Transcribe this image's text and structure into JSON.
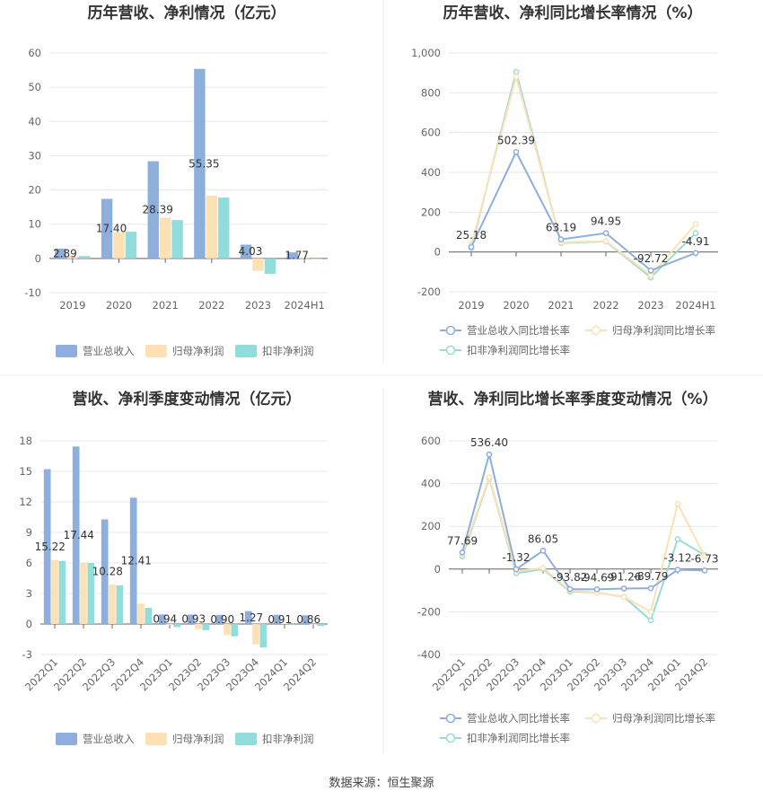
{
  "colors": {
    "revenue": "#8eaedb",
    "net_profit": "#fde1b4",
    "deducted_profit": "#92dcdc",
    "revenue_line": "#8eaedb",
    "net_line": "#fde1b4",
    "deducted_line": "#9adad8",
    "grid": "#e6e6ef",
    "axis": "#666666"
  },
  "source": "数据来源：恒生聚源",
  "chart_data": [
    {
      "type": "bar",
      "title": "历年营收、净利情况（亿元）",
      "categories": [
        "2019",
        "2020",
        "2021",
        "2022",
        "2023",
        "2024H1"
      ],
      "ylim": [
        -10,
        60
      ],
      "yticks": [
        -10,
        0,
        10,
        20,
        30,
        40,
        50,
        60
      ],
      "ytick_labels": [
        "-10",
        "0",
        "10",
        "20",
        "30",
        "40",
        "50",
        "60"
      ],
      "series": [
        {
          "name": "营业总收入",
          "values": [
            2.89,
            17.4,
            28.39,
            55.35,
            4.03,
            1.77
          ],
          "data_labels": [
            "2.89",
            "17.40",
            "28.39",
            "55.35",
            "4.03",
            "1.77"
          ]
        },
        {
          "name": "归母净利润",
          "values": [
            0.6,
            7.6,
            11.9,
            18.3,
            -3.6,
            0.2
          ]
        },
        {
          "name": "扣非净利润",
          "values": [
            0.7,
            7.8,
            11.2,
            17.8,
            -4.5,
            -0.1
          ]
        }
      ],
      "grid": true,
      "legend": "bottom"
    },
    {
      "type": "line",
      "title": "历年营收、净利同比增长率情况（%）",
      "categories": [
        "2019",
        "2020",
        "2021",
        "2022",
        "2023",
        "2024H1"
      ],
      "ylim": [
        -200,
        1000
      ],
      "yticks": [
        -200,
        0,
        200,
        400,
        600,
        800,
        1000
      ],
      "ytick_labels": [
        "-200",
        "0",
        "200",
        "400",
        "600",
        "800",
        "1,000"
      ],
      "series": [
        {
          "name": "营业总收入同比增长率",
          "values": [
            25.18,
            502.39,
            63.19,
            94.95,
            -92.72,
            -4.91
          ],
          "data_labels": [
            "25.18",
            "502.39",
            "63.19",
            "94.95",
            "-92.72",
            "-4.91"
          ]
        },
        {
          "name": "归母净利润同比增长率",
          "values": [
            35,
            880,
            48,
            55,
            -118,
            140
          ]
        },
        {
          "name": "扣非净利润同比增长率",
          "values": [
            20,
            905,
            45,
            53,
            -128,
            95
          ]
        }
      ],
      "grid": true,
      "legend": "bottom"
    },
    {
      "type": "bar",
      "title": "营收、净利季度变动情况（亿元）",
      "categories": [
        "2022Q1",
        "2022Q2",
        "2022Q3",
        "2022Q4",
        "2023Q1",
        "2023Q2",
        "2023Q3",
        "2023Q4",
        "2024Q1",
        "2024Q2"
      ],
      "ylim": [
        -3,
        18
      ],
      "yticks": [
        -3,
        0,
        3,
        6,
        9,
        12,
        15,
        18
      ],
      "ytick_labels": [
        "-3",
        "0",
        "3",
        "6",
        "9",
        "12",
        "15",
        "18"
      ],
      "series": [
        {
          "name": "营业总收入",
          "values": [
            15.22,
            17.44,
            10.28,
            12.41,
            0.94,
            0.93,
            0.9,
            1.27,
            0.91,
            0.86
          ],
          "data_labels": [
            "15.22",
            "17.44",
            "10.28",
            "12.41",
            "0.94",
            "0.93",
            "0.90",
            "1.27",
            "0.91",
            "0.86"
          ]
        },
        {
          "name": "归母净利润",
          "values": [
            6.3,
            6.0,
            3.9,
            2.0,
            -0.1,
            -0.5,
            -1.1,
            -2.0,
            0.05,
            0.0
          ]
        },
        {
          "name": "扣非净利润",
          "values": [
            6.2,
            6.0,
            3.8,
            1.6,
            -0.3,
            -0.6,
            -1.2,
            -2.3,
            -0.1,
            -0.2
          ]
        }
      ],
      "grid": true,
      "legend": "bottom"
    },
    {
      "type": "line",
      "title": "营收、净利同比增长率季度变动情况（%）",
      "categories": [
        "2022Q1",
        "2022Q2",
        "2022Q3",
        "2022Q4",
        "2023Q1",
        "2023Q2",
        "2023Q3",
        "2023Q4",
        "2024Q1",
        "2024Q2"
      ],
      "ylim": [
        -400,
        600
      ],
      "yticks": [
        -400,
        -200,
        0,
        200,
        400,
        600
      ],
      "ytick_labels": [
        "-400",
        "-200",
        "0",
        "200",
        "400",
        "600"
      ],
      "series": [
        {
          "name": "营业总收入同比增长率",
          "values": [
            77.69,
            536.4,
            -1.32,
            86.05,
            -93.82,
            -94.69,
            -91.26,
            -89.79,
            -3.12,
            -6.73
          ],
          "data_labels": [
            "77.69",
            "536.40",
            "-1.32",
            "86.05",
            "-93.82",
            "-94.69",
            "-91.26",
            "-89.79",
            "-3.12",
            "-6.73"
          ]
        },
        {
          "name": "归母净利润同比增长率",
          "values": [
            70,
            430,
            -10,
            5,
            -100,
            -110,
            -130,
            -200,
            305,
            60
          ]
        },
        {
          "name": "扣非净利润同比增长率",
          "values": [
            60,
            425,
            -20,
            0,
            -105,
            -110,
            -130,
            -240,
            140,
            65
          ]
        }
      ],
      "grid": true,
      "legend": "bottom"
    }
  ]
}
